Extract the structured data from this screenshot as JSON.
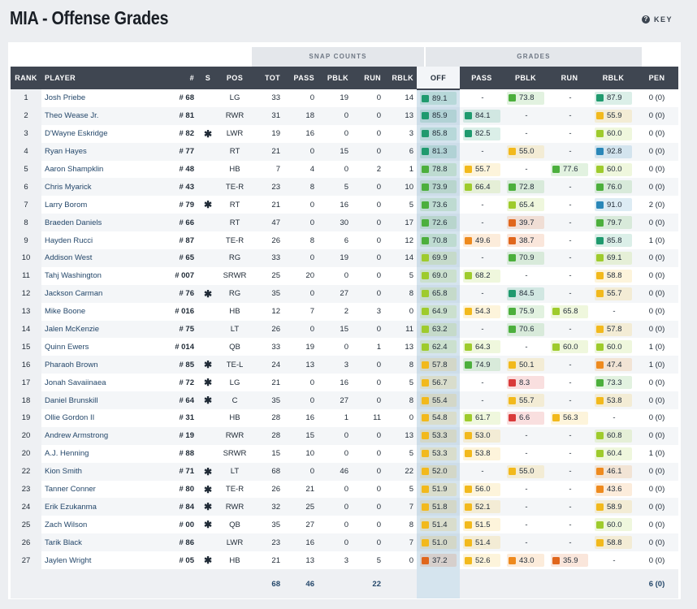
{
  "title": "MIA - Offense Grades",
  "key_label": "KEY",
  "groups": {
    "snap": "SNAP COUNTS",
    "grades": "GRADES"
  },
  "headers": [
    "RANK",
    "PLAYER",
    "#",
    "S",
    "POS",
    "TOT",
    "PASS",
    "PBLK",
    "RUN",
    "RBLK",
    "OFF",
    "PASS",
    "PBLK",
    "RUN",
    "RBLK",
    "PEN"
  ],
  "colors": {
    "dark_green": "#1f9a6e",
    "green": "#4caf3c",
    "light_green": "#9ecb2c",
    "yellow": "#f2b91c",
    "orange": "#ee8a1e",
    "dark_orange": "#e0661c",
    "red": "#d93a3a",
    "blue": "#2a87b8"
  },
  "rows": [
    {
      "rank": "1",
      "player": "Josh Priebe",
      "num": "# 68",
      "s": "",
      "pos": "LG",
      "tot": "33",
      "pass": "0",
      "pblk": "19",
      "run": "0",
      "rblk": "14",
      "off": "89.1",
      "gpass": "-",
      "gpblk": "73.8",
      "grun": "-",
      "grblk": "87.9",
      "pen": "0 (0)"
    },
    {
      "rank": "2",
      "player": "Theo Wease Jr.",
      "num": "# 81",
      "s": "",
      "pos": "RWR",
      "tot": "31",
      "pass": "18",
      "pblk": "0",
      "run": "0",
      "rblk": "13",
      "off": "85.9",
      "gpass": "84.1",
      "gpblk": "-",
      "grun": "-",
      "grblk": "55.9",
      "pen": "0 (0)"
    },
    {
      "rank": "3",
      "player": "D'Wayne Eskridge",
      "num": "# 82",
      "s": "✱",
      "pos": "LWR",
      "tot": "19",
      "pass": "16",
      "pblk": "0",
      "run": "0",
      "rblk": "3",
      "off": "85.8",
      "gpass": "82.5",
      "gpblk": "-",
      "grun": "-",
      "grblk": "60.0",
      "pen": "0 (0)"
    },
    {
      "rank": "4",
      "player": "Ryan Hayes",
      "num": "# 77",
      "s": "",
      "pos": "RT",
      "tot": "21",
      "pass": "0",
      "pblk": "15",
      "run": "0",
      "rblk": "6",
      "off": "81.3",
      "gpass": "-",
      "gpblk": "55.0",
      "grun": "-",
      "grblk": "92.8",
      "pen": "0 (0)"
    },
    {
      "rank": "5",
      "player": "Aaron Shampklin",
      "num": "# 48",
      "s": "",
      "pos": "HB",
      "tot": "7",
      "pass": "4",
      "pblk": "0",
      "run": "2",
      "rblk": "1",
      "off": "78.8",
      "gpass": "55.7",
      "gpblk": "-",
      "grun": "77.6",
      "grblk": "60.0",
      "pen": "0 (0)"
    },
    {
      "rank": "6",
      "player": "Chris Myarick",
      "num": "# 43",
      "s": "",
      "pos": "TE-R",
      "tot": "23",
      "pass": "8",
      "pblk": "5",
      "run": "0",
      "rblk": "10",
      "off": "73.9",
      "gpass": "66.4",
      "gpblk": "72.8",
      "grun": "-",
      "grblk": "76.0",
      "pen": "0 (0)"
    },
    {
      "rank": "7",
      "player": "Larry Borom",
      "num": "# 79",
      "s": "✱",
      "pos": "RT",
      "tot": "21",
      "pass": "0",
      "pblk": "16",
      "run": "0",
      "rblk": "5",
      "off": "73.6",
      "gpass": "-",
      "gpblk": "65.4",
      "grun": "-",
      "grblk": "91.0",
      "pen": "2 (0)"
    },
    {
      "rank": "8",
      "player": "Braeden Daniels",
      "num": "# 66",
      "s": "",
      "pos": "RT",
      "tot": "47",
      "pass": "0",
      "pblk": "30",
      "run": "0",
      "rblk": "17",
      "off": "72.6",
      "gpass": "-",
      "gpblk": "39.7",
      "grun": "-",
      "grblk": "79.7",
      "pen": "0 (0)"
    },
    {
      "rank": "9",
      "player": "Hayden Rucci",
      "num": "# 87",
      "s": "",
      "pos": "TE-R",
      "tot": "26",
      "pass": "8",
      "pblk": "6",
      "run": "0",
      "rblk": "12",
      "off": "70.8",
      "gpass": "49.6",
      "gpblk": "38.7",
      "grun": "-",
      "grblk": "85.8",
      "pen": "1 (0)"
    },
    {
      "rank": "10",
      "player": "Addison West",
      "num": "# 65",
      "s": "",
      "pos": "RG",
      "tot": "33",
      "pass": "0",
      "pblk": "19",
      "run": "0",
      "rblk": "14",
      "off": "69.9",
      "gpass": "-",
      "gpblk": "70.9",
      "grun": "-",
      "grblk": "69.1",
      "pen": "0 (0)"
    },
    {
      "rank": "11",
      "player": "Tahj Washington",
      "num": "# 007",
      "s": "",
      "pos": "SRWR",
      "tot": "25",
      "pass": "20",
      "pblk": "0",
      "run": "0",
      "rblk": "5",
      "off": "69.0",
      "gpass": "68.2",
      "gpblk": "-",
      "grun": "-",
      "grblk": "58.8",
      "pen": "0 (0)"
    },
    {
      "rank": "12",
      "player": "Jackson Carman",
      "num": "# 76",
      "s": "✱",
      "pos": "RG",
      "tot": "35",
      "pass": "0",
      "pblk": "27",
      "run": "0",
      "rblk": "8",
      "off": "65.8",
      "gpass": "-",
      "gpblk": "84.5",
      "grun": "-",
      "grblk": "55.7",
      "pen": "0 (0)"
    },
    {
      "rank": "13",
      "player": "Mike Boone",
      "num": "# 016",
      "s": "",
      "pos": "HB",
      "tot": "12",
      "pass": "7",
      "pblk": "2",
      "run": "3",
      "rblk": "0",
      "off": "64.9",
      "gpass": "54.3",
      "gpblk": "75.9",
      "grun": "65.8",
      "grblk": "-",
      "pen": "0 (0)"
    },
    {
      "rank": "14",
      "player": "Jalen McKenzie",
      "num": "# 75",
      "s": "",
      "pos": "LT",
      "tot": "26",
      "pass": "0",
      "pblk": "15",
      "run": "0",
      "rblk": "11",
      "off": "63.2",
      "gpass": "-",
      "gpblk": "70.6",
      "grun": "-",
      "grblk": "57.8",
      "pen": "0 (0)"
    },
    {
      "rank": "15",
      "player": "Quinn Ewers",
      "num": "# 014",
      "s": "",
      "pos": "QB",
      "tot": "33",
      "pass": "19",
      "pblk": "0",
      "run": "1",
      "rblk": "13",
      "off": "62.4",
      "gpass": "64.3",
      "gpblk": "-",
      "grun": "60.0",
      "grblk": "60.0",
      "pen": "1 (0)"
    },
    {
      "rank": "16",
      "player": "Pharaoh Brown",
      "num": "# 85",
      "s": "✱",
      "pos": "TE-L",
      "tot": "24",
      "pass": "13",
      "pblk": "3",
      "run": "0",
      "rblk": "8",
      "off": "57.8",
      "gpass": "74.9",
      "gpblk": "50.1",
      "grun": "-",
      "grblk": "47.4",
      "pen": "1 (0)"
    },
    {
      "rank": "17",
      "player": "Jonah Savaiinaea",
      "num": "# 72",
      "s": "✱",
      "pos": "LG",
      "tot": "21",
      "pass": "0",
      "pblk": "16",
      "run": "0",
      "rblk": "5",
      "off": "56.7",
      "gpass": "-",
      "gpblk": "8.3",
      "grun": "-",
      "grblk": "73.3",
      "pen": "0 (0)"
    },
    {
      "rank": "18",
      "player": "Daniel Brunskill",
      "num": "# 64",
      "s": "✱",
      "pos": "C",
      "tot": "35",
      "pass": "0",
      "pblk": "27",
      "run": "0",
      "rblk": "8",
      "off": "55.4",
      "gpass": "-",
      "gpblk": "55.7",
      "grun": "-",
      "grblk": "53.8",
      "pen": "0 (0)"
    },
    {
      "rank": "19",
      "player": "Ollie Gordon II",
      "num": "# 31",
      "s": "",
      "pos": "HB",
      "tot": "28",
      "pass": "16",
      "pblk": "1",
      "run": "11",
      "rblk": "0",
      "off": "54.8",
      "gpass": "61.7",
      "gpblk": "6.6",
      "grun": "56.3",
      "grblk": "-",
      "pen": "0 (0)"
    },
    {
      "rank": "20",
      "player": "Andrew Armstrong",
      "num": "# 19",
      "s": "",
      "pos": "RWR",
      "tot": "28",
      "pass": "15",
      "pblk": "0",
      "run": "0",
      "rblk": "13",
      "off": "53.3",
      "gpass": "53.0",
      "gpblk": "-",
      "grun": "-",
      "grblk": "60.8",
      "pen": "0 (0)"
    },
    {
      "rank": "20",
      "player": "A.J. Henning",
      "num": "# 88",
      "s": "",
      "pos": "SRWR",
      "tot": "15",
      "pass": "10",
      "pblk": "0",
      "run": "0",
      "rblk": "5",
      "off": "53.3",
      "gpass": "53.8",
      "gpblk": "-",
      "grun": "-",
      "grblk": "60.4",
      "pen": "1 (0)"
    },
    {
      "rank": "22",
      "player": "Kion Smith",
      "num": "# 71",
      "s": "✱",
      "pos": "LT",
      "tot": "68",
      "pass": "0",
      "pblk": "46",
      "run": "0",
      "rblk": "22",
      "off": "52.0",
      "gpass": "-",
      "gpblk": "55.0",
      "grun": "-",
      "grblk": "46.1",
      "pen": "0 (0)"
    },
    {
      "rank": "23",
      "player": "Tanner Conner",
      "num": "# 80",
      "s": "✱",
      "pos": "TE-R",
      "tot": "26",
      "pass": "21",
      "pblk": "0",
      "run": "0",
      "rblk": "5",
      "off": "51.9",
      "gpass": "56.0",
      "gpblk": "-",
      "grun": "-",
      "grblk": "43.6",
      "pen": "0 (0)"
    },
    {
      "rank": "24",
      "player": "Erik Ezukanma",
      "num": "# 84",
      "s": "✱",
      "pos": "RWR",
      "tot": "32",
      "pass": "25",
      "pblk": "0",
      "run": "0",
      "rblk": "7",
      "off": "51.8",
      "gpass": "52.1",
      "gpblk": "-",
      "grun": "-",
      "grblk": "58.9",
      "pen": "0 (0)"
    },
    {
      "rank": "25",
      "player": "Zach Wilson",
      "num": "# 00",
      "s": "✱",
      "pos": "QB",
      "tot": "35",
      "pass": "27",
      "pblk": "0",
      "run": "0",
      "rblk": "8",
      "off": "51.4",
      "gpass": "51.5",
      "gpblk": "-",
      "grun": "-",
      "grblk": "60.0",
      "pen": "0 (0)"
    },
    {
      "rank": "26",
      "player": "Tarik Black",
      "num": "# 86",
      "s": "",
      "pos": "LWR",
      "tot": "23",
      "pass": "16",
      "pblk": "0",
      "run": "0",
      "rblk": "7",
      "off": "51.0",
      "gpass": "51.4",
      "gpblk": "-",
      "grun": "-",
      "grblk": "58.8",
      "pen": "0 (0)"
    },
    {
      "rank": "27",
      "player": "Jaylen Wright",
      "num": "# 05",
      "s": "✱",
      "pos": "HB",
      "tot": "21",
      "pass": "13",
      "pblk": "3",
      "run": "5",
      "rblk": "0",
      "off": "37.2",
      "gpass": "52.6",
      "gpblk": "43.0",
      "grun": "35.9",
      "grblk": "-",
      "pen": "0 (0)"
    }
  ],
  "totals": {
    "tot": "68",
    "pass": "46",
    "run": "22",
    "pen": "6 (0)"
  }
}
